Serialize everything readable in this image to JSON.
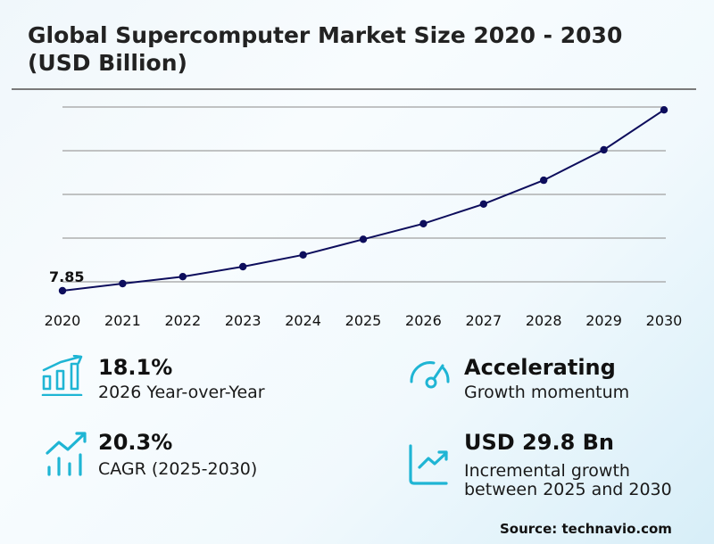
{
  "header": {
    "title_line1": "Global Supercomputer Market Size 2020 - 2030",
    "title_line2": "(USD Billion)"
  },
  "chart_data": {
    "type": "line",
    "title": "Global Supercomputer Market Size 2020 - 2030 (USD Billion)",
    "xlabel": "",
    "ylabel": "USD Billion",
    "categories": [
      "2020",
      "2021",
      "2022",
      "2023",
      "2024",
      "2025",
      "2026",
      "2027",
      "2028",
      "2029",
      "2030"
    ],
    "series": [
      {
        "name": "Market Size",
        "values": [
          7.85,
          9.5,
          11.1,
          13.4,
          16.1,
          19.7,
          23.3,
          27.8,
          33.3,
          40.3,
          49.5
        ]
      }
    ],
    "annotations": [
      {
        "x": "2020",
        "text": "7.85"
      }
    ],
    "grid": true,
    "gridlines": 5,
    "line_color": "#0d0d5c"
  },
  "kpis": [
    {
      "value": "18.1%",
      "label": "2026 Year-over-Year",
      "icon": "bar-chart-growth-icon"
    },
    {
      "value": "Accelerating",
      "label": "Growth momentum",
      "icon": "speedometer-icon"
    },
    {
      "value": "20.3%",
      "label": "CAGR (2025-2030)",
      "icon": "trend-up-bars-icon"
    },
    {
      "value": "USD 29.8 Bn",
      "label_line1": "Incremental growth",
      "label_line2": "between 2025 and 2030",
      "icon": "line-chart-up-icon"
    }
  ],
  "colors": {
    "accent": "#1fb5d4",
    "line": "#0d0d5c",
    "grid": "#a0a0a0"
  },
  "footer": {
    "source": "Source: technavio.com"
  }
}
